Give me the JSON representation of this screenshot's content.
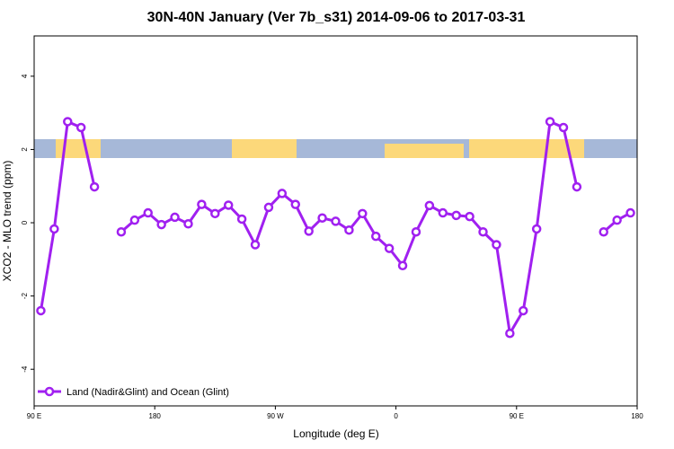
{
  "chart_data": {
    "type": "line",
    "title": "30N-40N January (Ver 7b_s31)   2014-09-06 to 2017-03-31",
    "x_label": "Longitude (deg E)",
    "y_label": "XCO2 - MLO trend (ppm)",
    "x": [
      95,
      105,
      115,
      125,
      135,
      145,
      155,
      165,
      175,
      185,
      195,
      205,
      215,
      225,
      235,
      245,
      255,
      265,
      275,
      285,
      295,
      305,
      315,
      325,
      335,
      345,
      355,
      365,
      375,
      385,
      395,
      405,
      415,
      425,
      435,
      445,
      455,
      465,
      475,
      485,
      495,
      505,
      515,
      525,
      535
    ],
    "series": [
      {
        "name": "Land (Nadir&Glint) and Ocean (Glint)",
        "color": "#a020f0",
        "values": [
          -2.4,
          -0.17,
          2.76,
          2.6,
          0.98,
          null,
          -0.25,
          0.07,
          0.27,
          -0.05,
          0.15,
          -0.03,
          0.5,
          0.25,
          0.48,
          0.1,
          -0.6,
          0.42,
          0.8,
          0.5,
          -0.23,
          0.13,
          0.04,
          -0.2,
          0.25,
          -0.37,
          -0.7,
          -1.17,
          -0.25,
          0.47,
          0.27,
          0.2,
          0.17,
          -0.25,
          -0.6,
          -3.02,
          -2.4,
          -0.17,
          2.76,
          2.6,
          0.98,
          null,
          -0.25,
          0.07,
          0.27
        ]
      }
    ],
    "xlim": [
      90,
      540
    ],
    "xticks": [
      {
        "value": 90,
        "label": "90 E"
      },
      180,
      {
        "value": 270,
        "label": "90 W"
      },
      {
        "value": 360,
        "label": "0"
      },
      {
        "value": 450,
        "label": "90 E"
      },
      {
        "value": 540,
        "label": "180"
      }
    ],
    "ylim": [
      -5,
      5.1
    ],
    "yticks": [
      -4,
      -2,
      0,
      2,
      4
    ],
    "legend": "bottom-left"
  }
}
